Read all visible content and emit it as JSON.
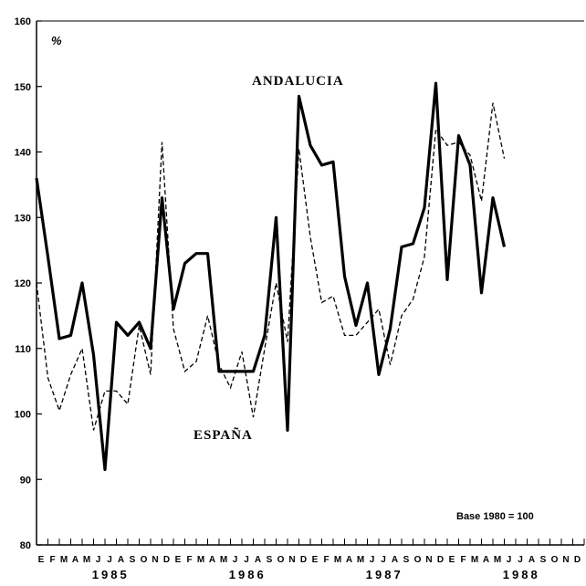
{
  "chart_data": {
    "type": "line",
    "ylabel": "%",
    "ylim": [
      80,
      160
    ],
    "yticks": [
      80,
      90,
      100,
      110,
      120,
      130,
      140,
      150,
      160
    ],
    "month_labels": [
      "E",
      "F",
      "M",
      "A",
      "M",
      "J",
      "J",
      "A",
      "S",
      "O",
      "N",
      "D"
    ],
    "years": [
      "1985",
      "1986",
      "1987",
      "1988"
    ],
    "note": "Base 1980 = 100",
    "grid": false,
    "series": [
      {
        "name": "ANDALUCIA",
        "values": [
          136,
          124,
          111.5,
          112,
          120,
          109,
          91.5,
          114,
          112,
          114,
          110,
          133,
          116,
          123,
          124.5,
          124.5,
          106.5,
          106.5,
          106.5,
          106.5,
          112,
          130,
          97.5,
          148.5,
          141,
          138,
          138.5,
          121,
          113.5,
          120,
          106,
          113,
          125.5,
          126,
          131.5,
          150.5,
          120.5,
          142.5,
          138,
          118.5,
          133,
          125.5
        ]
      },
      {
        "name": "ESPAÑA",
        "values": [
          120,
          105.5,
          100.5,
          106,
          110,
          97.5,
          103.5,
          103.5,
          101.5,
          113.5,
          106,
          141.5,
          113,
          106.5,
          108,
          115,
          107.5,
          104,
          109.5,
          99.5,
          110,
          120,
          111,
          140.5,
          127,
          117,
          118,
          112,
          112,
          114,
          116,
          107.5,
          115,
          117.5,
          124,
          143.5,
          141,
          141.5,
          139.5,
          132.5,
          147.5,
          139
        ]
      }
    ]
  }
}
